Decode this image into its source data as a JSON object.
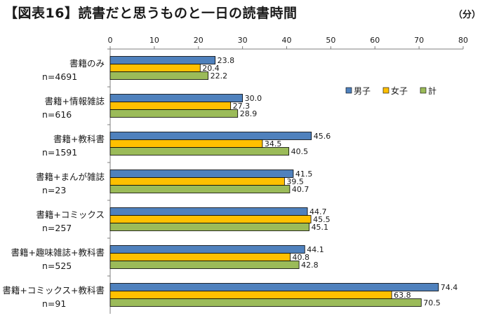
{
  "title": "【図表16】読書だと思うものと一日の読書時間",
  "unit": "（分）",
  "colors": {
    "男子": "#4f81bd",
    "女子": "#ffc000",
    "計": "#9bbb59"
  },
  "chart_data": {
    "type": "bar",
    "orientation": "horizontal",
    "title": "【図表16】読書だと思うものと一日の読書時間",
    "xlim": [
      0,
      80
    ],
    "xticks": [
      0,
      10,
      20,
      30,
      40,
      50,
      60,
      70,
      80
    ],
    "grid": false,
    "legend_position": "top-right",
    "categories": [
      [
        "書籍のみ",
        "n=4691"
      ],
      [
        "書籍+情報雑誌",
        "n=616"
      ],
      [
        "書籍+教科書",
        "n=1591"
      ],
      [
        "書籍+まんが雑誌",
        "n=23"
      ],
      [
        "書籍+コミックス",
        "n=257"
      ],
      [
        "書籍+趣味雑誌+教科書",
        "n=525"
      ],
      [
        "書籍+コミックス+教科書",
        "n=91"
      ]
    ],
    "series": [
      {
        "name": "男子",
        "values": [
          23.8,
          30.0,
          45.6,
          41.5,
          44.7,
          44.1,
          74.4
        ]
      },
      {
        "name": "女子",
        "values": [
          20.4,
          27.3,
          34.5,
          39.5,
          45.5,
          40.8,
          63.8
        ]
      },
      {
        "name": "計",
        "values": [
          22.2,
          28.9,
          40.5,
          40.7,
          45.1,
          42.8,
          70.5
        ]
      }
    ]
  }
}
